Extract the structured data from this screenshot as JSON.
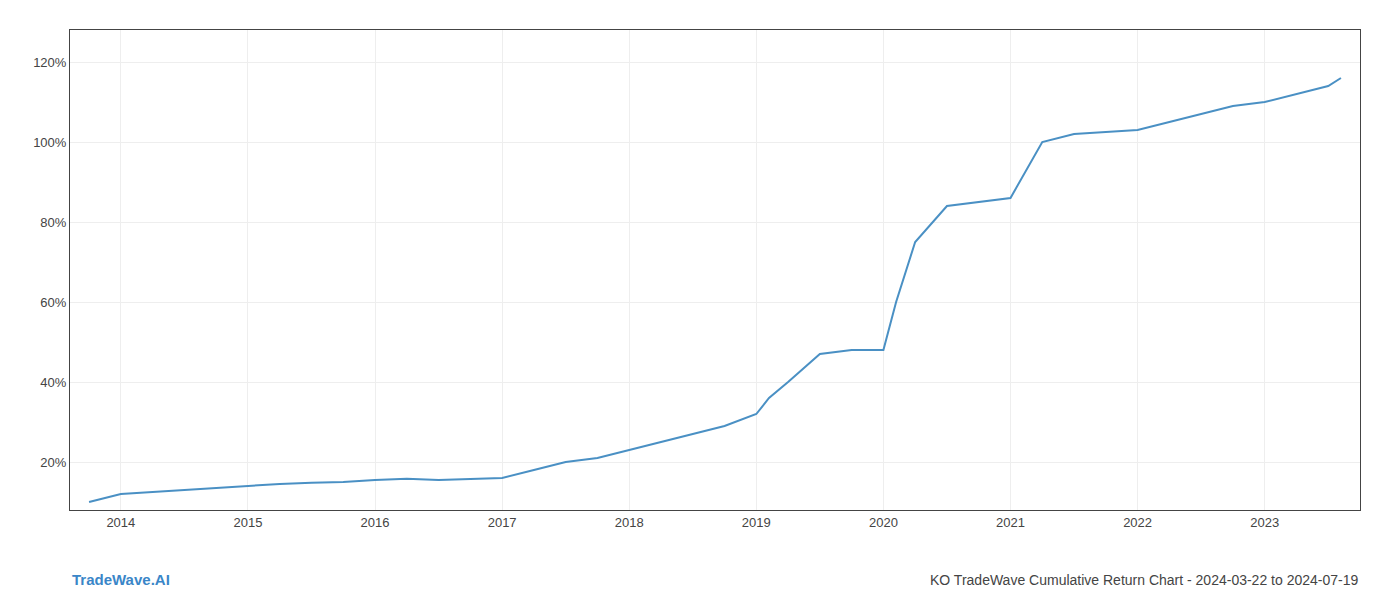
{
  "chart_data": {
    "type": "line",
    "title": "KO TradeWave Cumulative Return Chart - 2024-03-22 to 2024-07-19",
    "annotations": [
      {
        "text": "TradeWave.AI",
        "color": "#3a86c8"
      }
    ],
    "x": [
      2013.75,
      2014.0,
      2014.25,
      2014.5,
      2014.75,
      2015.0,
      2015.25,
      2015.5,
      2015.75,
      2016.0,
      2016.25,
      2016.5,
      2016.75,
      2017.0,
      2017.25,
      2017.5,
      2017.75,
      2018.0,
      2018.25,
      2018.5,
      2018.75,
      2019.0,
      2019.1,
      2019.25,
      2019.5,
      2019.75,
      2020.0,
      2020.1,
      2020.25,
      2020.5,
      2020.75,
      2021.0,
      2021.25,
      2021.5,
      2021.75,
      2022.0,
      2022.25,
      2022.5,
      2022.75,
      2023.0,
      2023.25,
      2023.5,
      2023.6
    ],
    "values": [
      10,
      12,
      12.5,
      13,
      13.5,
      14,
      14.5,
      14.8,
      15,
      15.5,
      15.8,
      15.5,
      15.8,
      16,
      18,
      20,
      21,
      23,
      25,
      27,
      29,
      32,
      36,
      40,
      47,
      48,
      48,
      60,
      75,
      84,
      85,
      86,
      100,
      102,
      102.5,
      103,
      105,
      107,
      109,
      110,
      112,
      114,
      116
    ],
    "color": "#4a90c4",
    "xlim": [
      2013.6,
      2023.75
    ],
    "xticks": [
      2014,
      2015,
      2016,
      2017,
      2018,
      2019,
      2020,
      2021,
      2022,
      2023
    ],
    "ylim": [
      8,
      128
    ],
    "yticks": [
      {
        "value": 20,
        "label": "20%"
      },
      {
        "value": 40,
        "label": "40%"
      },
      {
        "value": 60,
        "label": "60%"
      },
      {
        "value": 80,
        "label": "80%"
      },
      {
        "value": 100,
        "label": "100%"
      },
      {
        "value": 120,
        "label": "120%"
      }
    ],
    "grid": true
  }
}
